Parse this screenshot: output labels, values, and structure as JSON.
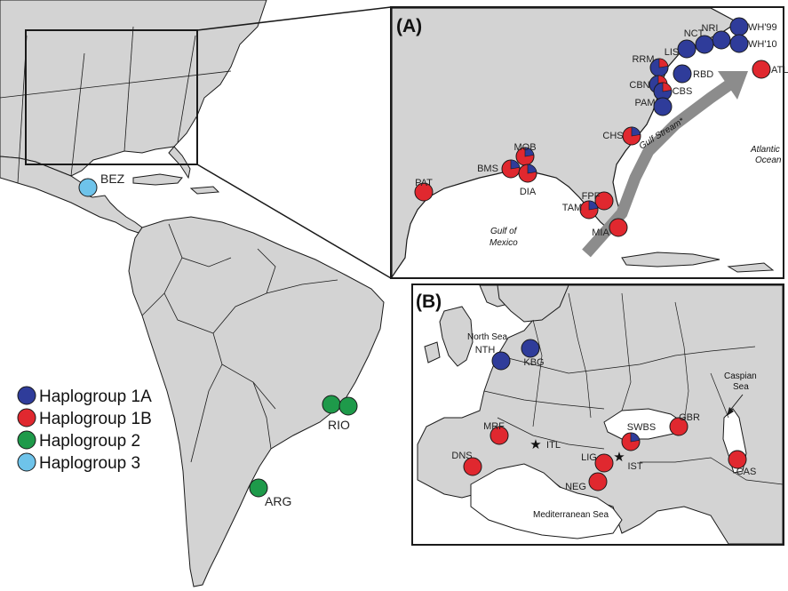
{
  "colors": {
    "land": "#d3d3d3",
    "border": "#1a1a1a",
    "water": "#ffffff",
    "haplogroup_1A": "#2f3c9a",
    "haplogroup_1B": "#e0282f",
    "haplogroup_2": "#1e9a4a",
    "haplogroup_3": "#6ec3ea",
    "gulf_stream": "#8c8c8c"
  },
  "legend": [
    {
      "label": "Haplogroup 1A",
      "color_key": "haplogroup_1A"
    },
    {
      "label": "Haplogroup 1B",
      "color_key": "haplogroup_1B"
    },
    {
      "label": "Haplogroup 2",
      "color_key": "haplogroup_2"
    },
    {
      "label": "Haplogroup 3",
      "color_key": "haplogroup_3"
    }
  ],
  "panels": {
    "a_letter": "(A)",
    "b_letter": "(B)"
  },
  "americas_sites": [
    {
      "code": "BEZ",
      "haplogroup": "3"
    },
    {
      "code": "RIO",
      "haplogroup": "2"
    },
    {
      "code": "ARG",
      "haplogroup": "2"
    }
  ],
  "panel_a": {
    "sea_labels": {
      "gulf_stream": "Gulf Stream*",
      "atlantic_1": "Atlantic",
      "atlantic_2": "Ocean",
      "gulf_1": "Gulf of",
      "gulf_2": "Mexico"
    },
    "sites": [
      {
        "code": "WH'99",
        "haplogroup": "1A"
      },
      {
        "code": "WH'10",
        "haplogroup": "1A"
      },
      {
        "code": "NRI",
        "haplogroup": "1A"
      },
      {
        "code": "NCT",
        "haplogroup": "1A"
      },
      {
        "code": "LIS",
        "haplogroup": "1A"
      },
      {
        "code": "RRM",
        "haplogroup": "1A/1B"
      },
      {
        "code": "RBD",
        "haplogroup": "1A"
      },
      {
        "code": "CBN",
        "haplogroup": "1A/1B"
      },
      {
        "code": "CBS",
        "haplogroup": "1A/1B"
      },
      {
        "code": "PAM",
        "haplogroup": "1A"
      },
      {
        "code": "ATL",
        "haplogroup": "1B"
      },
      {
        "code": "CHS",
        "haplogroup": "1B/1A"
      },
      {
        "code": "MOB",
        "haplogroup": "1B/1A"
      },
      {
        "code": "BMS",
        "haplogroup": "1B/1A"
      },
      {
        "code": "DIA",
        "haplogroup": "1B/1A"
      },
      {
        "code": "PAT",
        "haplogroup": "1B"
      },
      {
        "code": "FPF",
        "haplogroup": "1B"
      },
      {
        "code": "TAM",
        "haplogroup": "1B/1A"
      },
      {
        "code": "MIA",
        "haplogroup": "1B"
      }
    ]
  },
  "panel_b": {
    "sea_labels": {
      "north_sea": "North Sea",
      "caspian_1": "Caspian",
      "caspian_2": "Sea",
      "mediterranean": "Mediterranean Sea"
    },
    "sites": [
      {
        "code": "NTH",
        "haplogroup": "1A"
      },
      {
        "code": "KBG",
        "haplogroup": "1A"
      },
      {
        "code": "MRF",
        "haplogroup": "1B"
      },
      {
        "code": "ITL",
        "haplogroup": "star"
      },
      {
        "code": "DNS",
        "haplogroup": "1B"
      },
      {
        "code": "SWBS",
        "haplogroup": "1B/1A"
      },
      {
        "code": "GBR",
        "haplogroup": "1B"
      },
      {
        "code": "LIG",
        "haplogroup": "1B"
      },
      {
        "code": "IST",
        "haplogroup": "star"
      },
      {
        "code": "NEG",
        "haplogroup": "1B"
      },
      {
        "code": "CAS",
        "haplogroup": "1B"
      }
    ]
  }
}
